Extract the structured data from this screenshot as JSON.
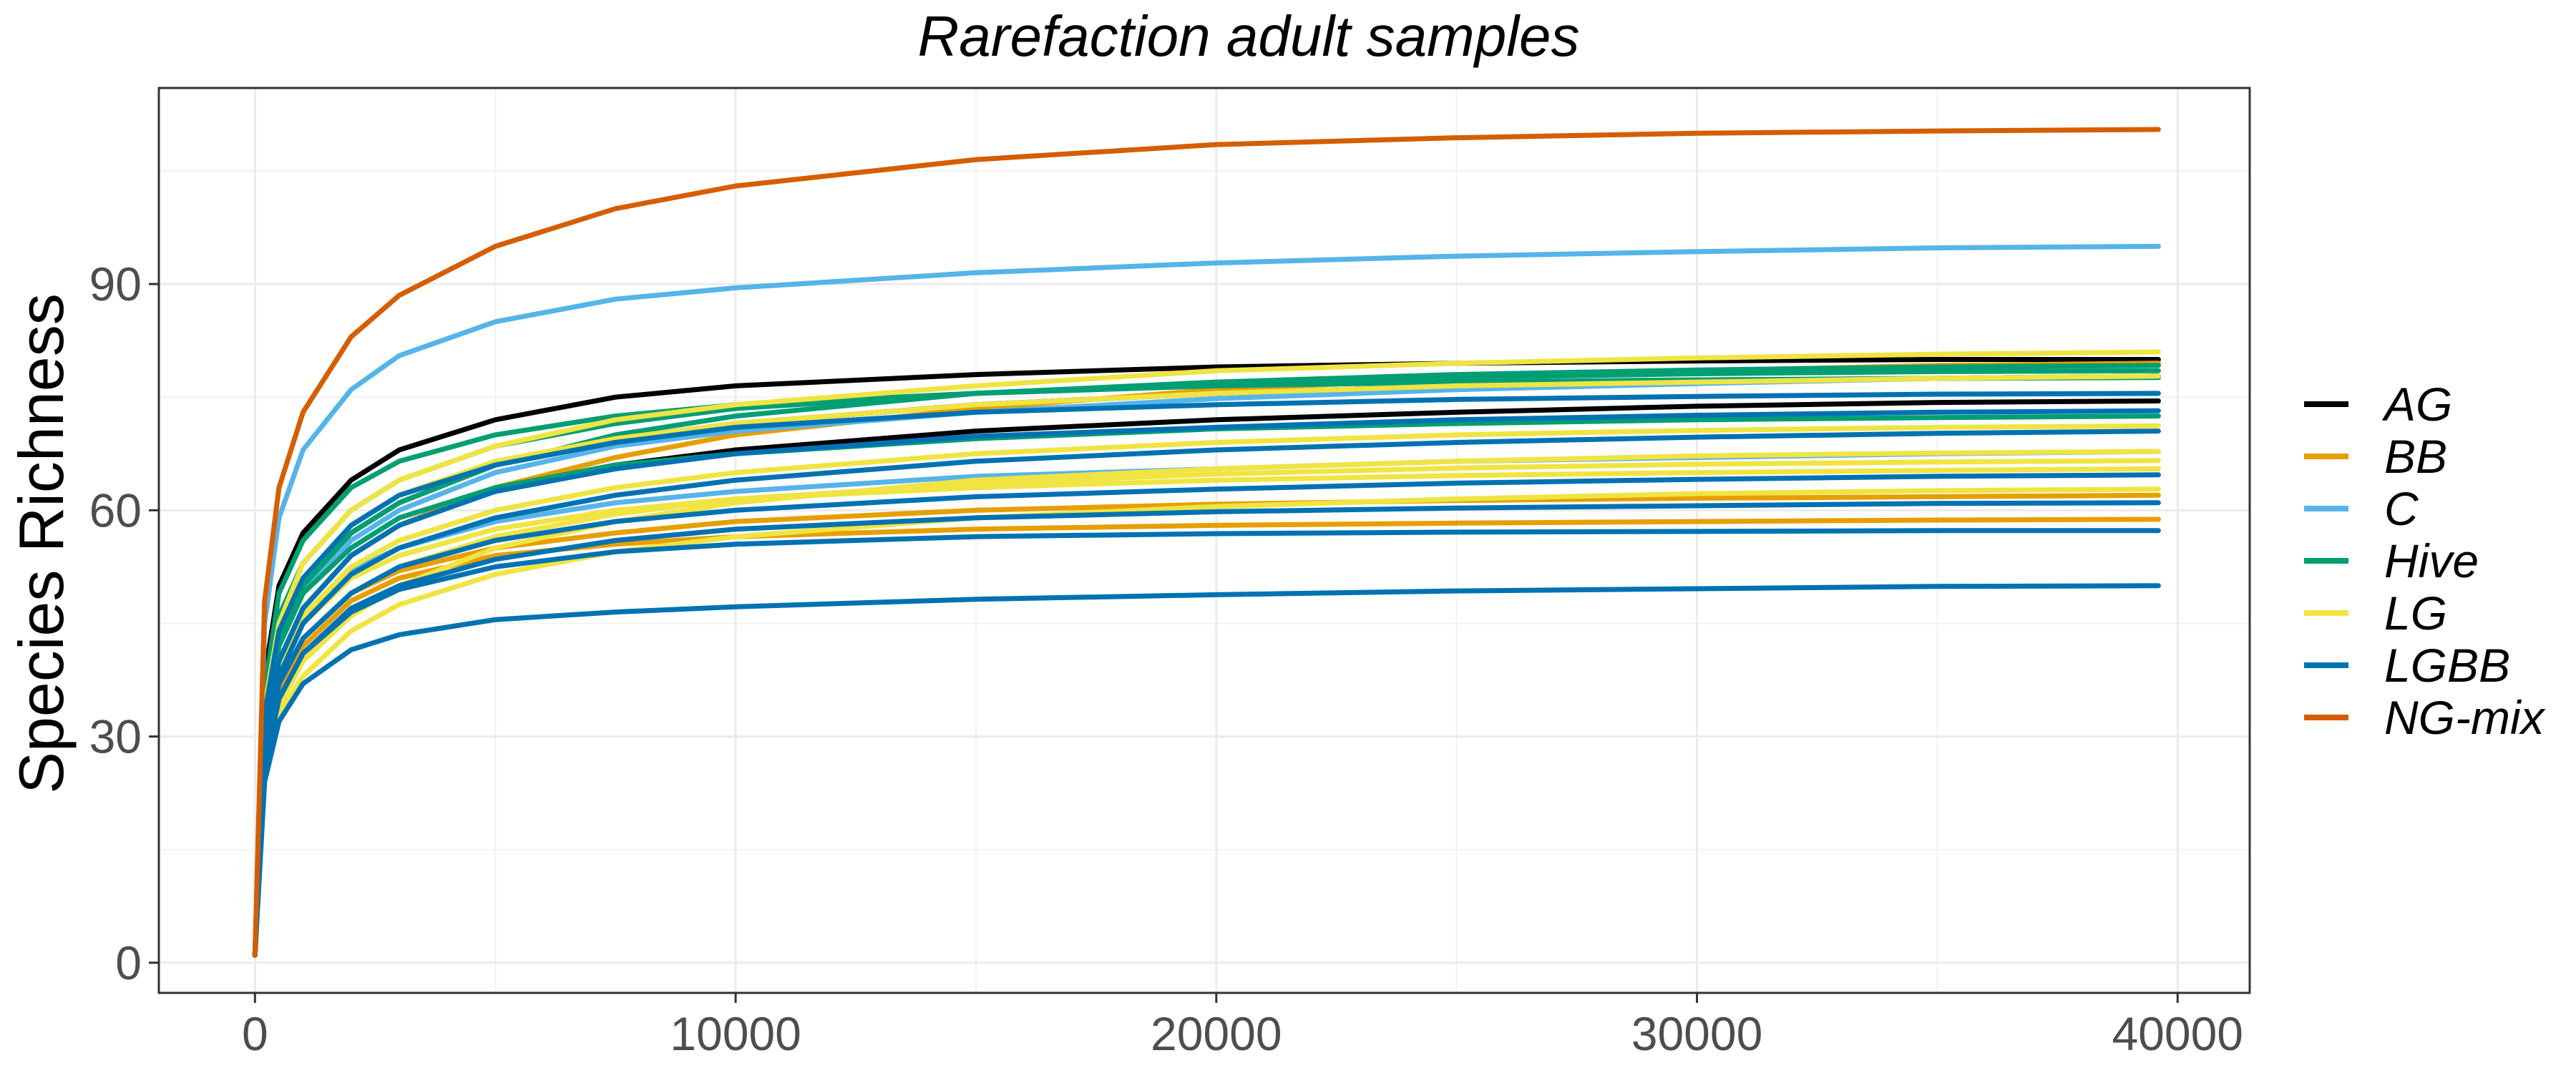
{
  "chart_data": {
    "type": "line",
    "title": "Rarefaction adult samples",
    "xlabel": "",
    "ylabel": "Species Richness",
    "xlim": [
      -2000,
      41500
    ],
    "ylim": [
      -4,
      116
    ],
    "x_ticks": [
      0,
      10000,
      20000,
      30000,
      40000
    ],
    "x_tick_labels": [
      "0",
      "10000",
      "20000",
      "30000",
      "40000"
    ],
    "y_ticks": [
      0,
      30,
      60,
      90
    ],
    "y_tick_labels": [
      "0",
      "30",
      "60",
      "90"
    ],
    "grid": true,
    "legend_position": "right",
    "legend": [
      {
        "label": "AG",
        "color": "#000000"
      },
      {
        "label": "BB",
        "color": "#E69F00"
      },
      {
        "label": "C",
        "color": "#56B4E9"
      },
      {
        "label": "Hive",
        "color": "#009E73"
      },
      {
        "label": "LG",
        "color": "#F0E442"
      },
      {
        "label": "LGBB",
        "color": "#0072B2"
      },
      {
        "label": "NG-mix",
        "color": "#D55E00"
      }
    ],
    "x": [
      0,
      200,
      500,
      1000,
      2000,
      3000,
      5000,
      7500,
      10000,
      15000,
      20000,
      25000,
      30000,
      35000,
      39600
    ],
    "series": [
      {
        "group": "AG",
        "color": "#000000",
        "values": [
          1,
          38,
          50,
          57,
          64,
          68,
          72,
          75,
          76.5,
          78,
          79,
          79.5,
          79.8,
          80,
          80
        ]
      },
      {
        "group": "AG",
        "color": "#000000",
        "values": [
          1,
          30,
          40,
          47,
          54,
          58,
          63,
          66,
          68,
          70.5,
          72,
          73,
          73.8,
          74.3,
          74.5
        ]
      },
      {
        "group": "AG",
        "color": "#000000",
        "values": [
          1,
          32,
          43,
          50,
          57,
          61,
          66,
          69.5,
          71.5,
          74,
          75.5,
          76.5,
          77,
          77.5,
          77.8
        ]
      },
      {
        "group": "BB",
        "color": "#E69F00",
        "values": [
          1,
          28,
          37,
          43,
          49,
          52,
          55,
          57,
          58.5,
          60,
          60.8,
          61.3,
          61.6,
          61.8,
          62
        ]
      },
      {
        "group": "BB",
        "color": "#E69F00",
        "values": [
          1,
          27,
          36,
          42,
          48,
          51,
          54,
          55.5,
          56.5,
          57.5,
          58,
          58.3,
          58.5,
          58.7,
          58.8
        ]
      },
      {
        "group": "BB",
        "color": "#E69F00",
        "values": [
          1,
          30,
          40,
          47,
          54,
          58,
          63,
          67,
          70,
          73.5,
          76,
          77.5,
          78.5,
          79.2,
          79.5
        ]
      },
      {
        "group": "C",
        "color": "#56B4E9",
        "values": [
          1,
          45,
          59,
          68,
          76,
          80.5,
          85,
          88,
          89.5,
          91.5,
          92.8,
          93.7,
          94.3,
          94.8,
          95
        ]
      },
      {
        "group": "C",
        "color": "#56B4E9",
        "values": [
          1,
          30,
          40,
          46,
          52,
          55,
          58.5,
          61,
          62.5,
          64.5,
          65.5,
          66.5,
          67,
          67.5,
          67.8
        ]
      },
      {
        "group": "C",
        "color": "#56B4E9",
        "values": [
          1,
          32,
          42,
          49,
          56,
          60,
          65,
          68.5,
          70.5,
          73,
          74.8,
          76,
          76.8,
          77.5,
          77.8
        ]
      },
      {
        "group": "Hive",
        "color": "#009E73",
        "values": [
          1,
          36,
          49,
          56,
          63,
          66.5,
          70,
          72.5,
          74,
          75.5,
          76.5,
          77,
          77.3,
          77.5,
          77.6
        ]
      },
      {
        "group": "Hive",
        "color": "#009E73",
        "values": [
          1,
          34,
          46,
          53,
          60,
          64,
          68.5,
          71.5,
          73.5,
          75.5,
          76.8,
          77.6,
          78.1,
          78.4,
          78.5
        ]
      },
      {
        "group": "Hive",
        "color": "#009E73",
        "values": [
          1,
          32,
          43,
          50,
          57,
          61,
          66,
          70,
          72.5,
          75.5,
          77,
          78,
          78.6,
          79,
          79.2
        ]
      },
      {
        "group": "Hive",
        "color": "#009E73",
        "values": [
          1,
          31,
          42,
          49,
          55,
          59,
          63,
          66,
          67.5,
          69.5,
          70.8,
          71.5,
          72,
          72.3,
          72.5
        ]
      },
      {
        "group": "LG",
        "color": "#F0E442",
        "values": [
          1,
          34,
          45,
          53,
          60,
          64,
          68.5,
          72,
          74,
          76.5,
          78.5,
          79.5,
          80.2,
          80.7,
          81
        ]
      },
      {
        "group": "LG",
        "color": "#F0E442",
        "values": [
          1,
          26,
          34,
          40,
          46,
          50,
          55,
          58.5,
          61,
          64,
          65.5,
          66.5,
          67.2,
          67.6,
          67.8
        ]
      },
      {
        "group": "LG",
        "color": "#F0E442",
        "values": [
          1,
          28,
          37,
          43,
          49,
          52.5,
          56.5,
          59.5,
          61.5,
          63.5,
          64.8,
          65.6,
          66.1,
          66.4,
          66.6
        ]
      },
      {
        "group": "LG",
        "color": "#F0E442",
        "values": [
          1,
          30,
          40,
          46,
          52.5,
          56,
          60,
          63,
          65,
          67.5,
          69,
          70,
          70.6,
          71,
          71.2
        ]
      },
      {
        "group": "LG",
        "color": "#F0E442",
        "values": [
          1,
          33,
          44,
          51,
          58,
          62,
          66.5,
          69.5,
          71.5,
          74,
          75.5,
          76.5,
          77,
          77.5,
          77.8
        ]
      },
      {
        "group": "LG",
        "color": "#F0E442",
        "values": [
          1,
          29,
          39,
          45,
          51,
          54,
          57.5,
          60,
          61.5,
          63,
          64,
          64.6,
          65,
          65.3,
          65.5
        ]
      },
      {
        "group": "LG",
        "color": "#F0E442",
        "values": [
          1,
          25,
          33,
          38,
          44,
          47.5,
          51.5,
          54.5,
          56.5,
          59,
          60.5,
          61.5,
          62.2,
          62.6,
          62.8
        ]
      },
      {
        "group": "LGBB",
        "color": "#0072B2",
        "values": [
          1,
          24,
          32,
          37,
          41.5,
          43.5,
          45.5,
          46.5,
          47.2,
          48.2,
          48.8,
          49.3,
          49.6,
          49.9,
          50
        ]
      },
      {
        "group": "LGBB",
        "color": "#0072B2",
        "values": [
          1,
          26,
          35,
          41,
          46.5,
          49.5,
          52.5,
          54.5,
          55.5,
          56.5,
          56.9,
          57.1,
          57.2,
          57.3,
          57.3
        ]
      },
      {
        "group": "LGBB",
        "color": "#0072B2",
        "values": [
          1,
          28,
          38,
          45,
          51.5,
          55,
          59,
          62,
          64,
          66.5,
          68,
          69,
          69.7,
          70.2,
          70.5
        ]
      },
      {
        "group": "LGBB",
        "color": "#0072B2",
        "values": [
          1,
          33,
          44,
          51,
          58,
          62,
          66,
          69,
          71,
          73,
          74,
          74.7,
          75.1,
          75.4,
          75.5
        ]
      },
      {
        "group": "LGBB",
        "color": "#0072B2",
        "values": [
          1,
          30,
          40,
          47,
          54,
          58,
          62.5,
          65.5,
          67.5,
          69.8,
          71,
          72,
          72.6,
          73,
          73.2
        ]
      },
      {
        "group": "LGBB",
        "color": "#0072B2",
        "values": [
          1,
          27,
          37,
          43,
          49,
          52.5,
          56,
          58.5,
          60,
          61.8,
          62.8,
          63.6,
          64.1,
          64.5,
          64.7
        ]
      },
      {
        "group": "LGBB",
        "color": "#0072B2",
        "values": [
          1,
          26,
          35,
          41,
          47,
          50,
          53.5,
          56,
          57.5,
          59,
          59.8,
          60.3,
          60.6,
          60.9,
          61
        ]
      },
      {
        "group": "NG-mix",
        "color": "#D55E00",
        "values": [
          1,
          48,
          63,
          73,
          83,
          88.5,
          95,
          100,
          103,
          106.5,
          108.5,
          109.4,
          110,
          110.3,
          110.5
        ]
      }
    ]
  }
}
